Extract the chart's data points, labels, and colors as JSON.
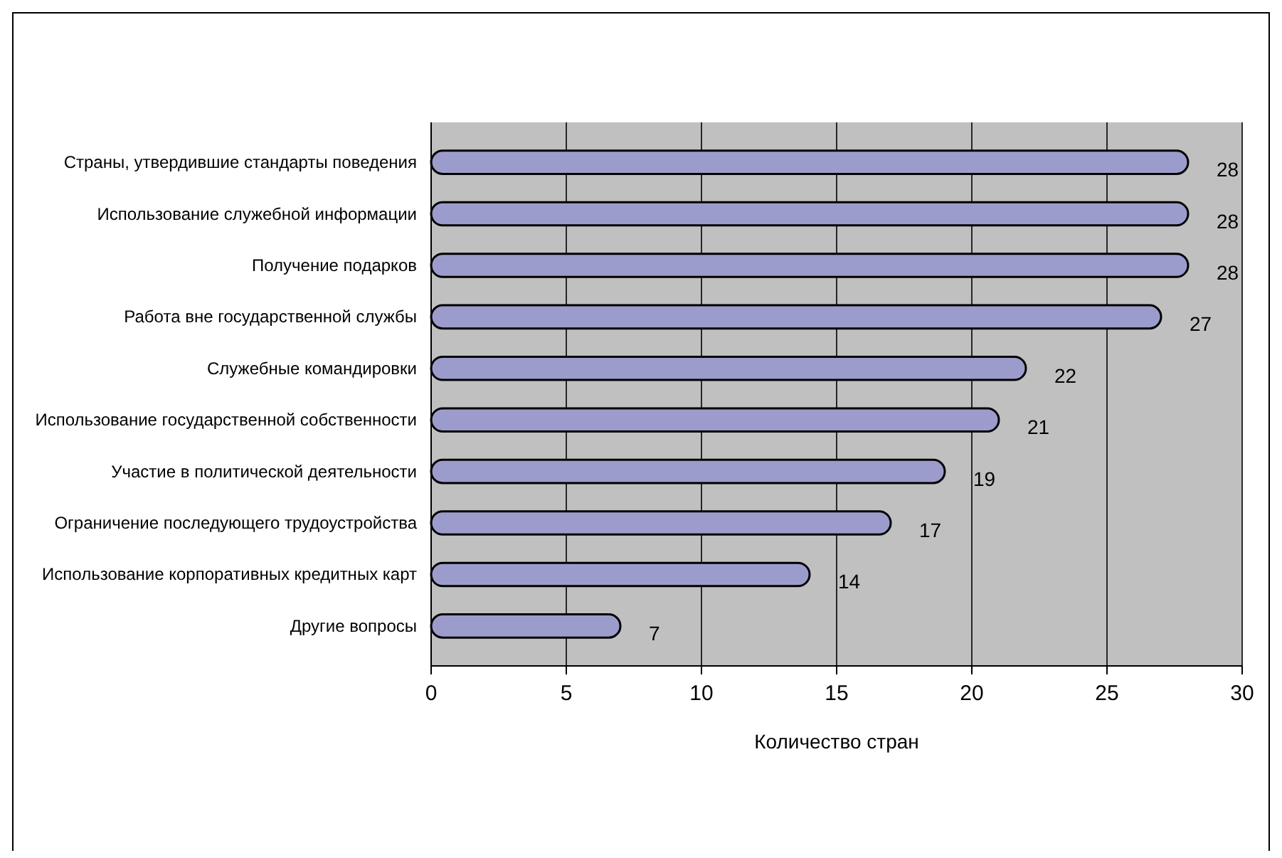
{
  "chart_data": {
    "type": "bar",
    "orientation": "horizontal",
    "xlabel": "Количество стран",
    "categories": [
      "Страны, утвердившие стандарты поведения",
      "Использование служебной информации",
      "Получение подарков",
      "Работа вне государственной службы",
      "Служебные командировки",
      "Использование государственной собственности",
      "Участие в политической деятельности",
      "Ограничение последующего трудоустройства",
      "Использование корпоративных кредитных карт",
      "Другие вопросы"
    ],
    "values": [
      28,
      28,
      28,
      27,
      22,
      21,
      19,
      17,
      14,
      7
    ],
    "color": "#9c9ccc",
    "xlim": [
      0,
      30
    ],
    "xticks": [
      0,
      5,
      10,
      15,
      20,
      25,
      30
    ],
    "grid": "x",
    "data_labels": true
  }
}
